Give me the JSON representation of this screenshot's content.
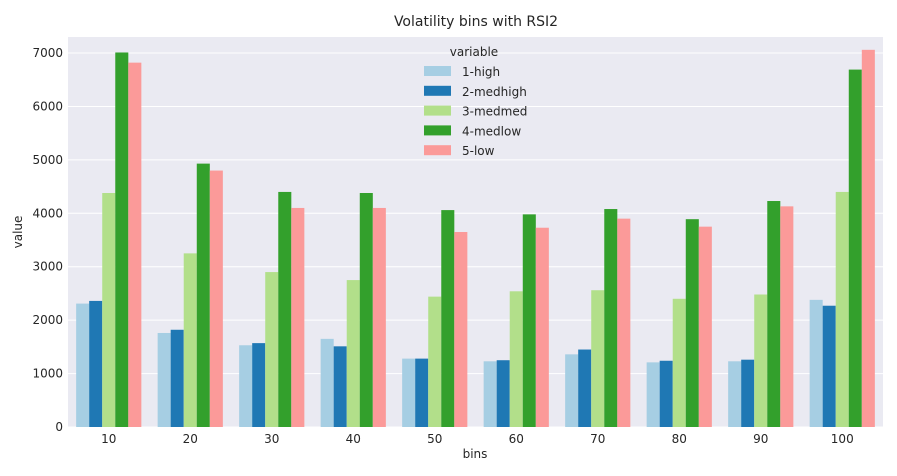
{
  "chart_data": {
    "type": "bar",
    "title": "Volatility bins with RSI2",
    "xlabel": "bins",
    "ylabel": "value",
    "ylim": [
      0,
      7300
    ],
    "yticks": [
      0,
      1000,
      2000,
      3000,
      4000,
      5000,
      6000,
      7000
    ],
    "grid": true,
    "legend": {
      "title": "variable",
      "placement": "top-center"
    },
    "categories": [
      "10",
      "20",
      "30",
      "40",
      "50",
      "60",
      "70",
      "80",
      "90",
      "100"
    ],
    "series": [
      {
        "name": "1-high",
        "color": "#a6cee3",
        "values": [
          2310,
          1760,
          1530,
          1650,
          1280,
          1230,
          1360,
          1210,
          1230,
          2380
        ]
      },
      {
        "name": "2-medhigh",
        "color": "#1f78b4",
        "values": [
          2360,
          1820,
          1570,
          1510,
          1280,
          1250,
          1450,
          1240,
          1260,
          2270
        ]
      },
      {
        "name": "3-medmed",
        "color": "#b2df8a",
        "values": [
          4380,
          3250,
          2900,
          2750,
          2440,
          2540,
          2560,
          2400,
          2480,
          4400
        ]
      },
      {
        "name": "4-medlow",
        "color": "#33a02c",
        "values": [
          7010,
          4930,
          4400,
          4380,
          4060,
          3980,
          4080,
          3890,
          4230,
          6690
        ]
      },
      {
        "name": "5-low",
        "color": "#fb9a99",
        "values": [
          6820,
          4800,
          4100,
          4100,
          3650,
          3730,
          3900,
          3750,
          4130,
          7060
        ]
      }
    ]
  }
}
